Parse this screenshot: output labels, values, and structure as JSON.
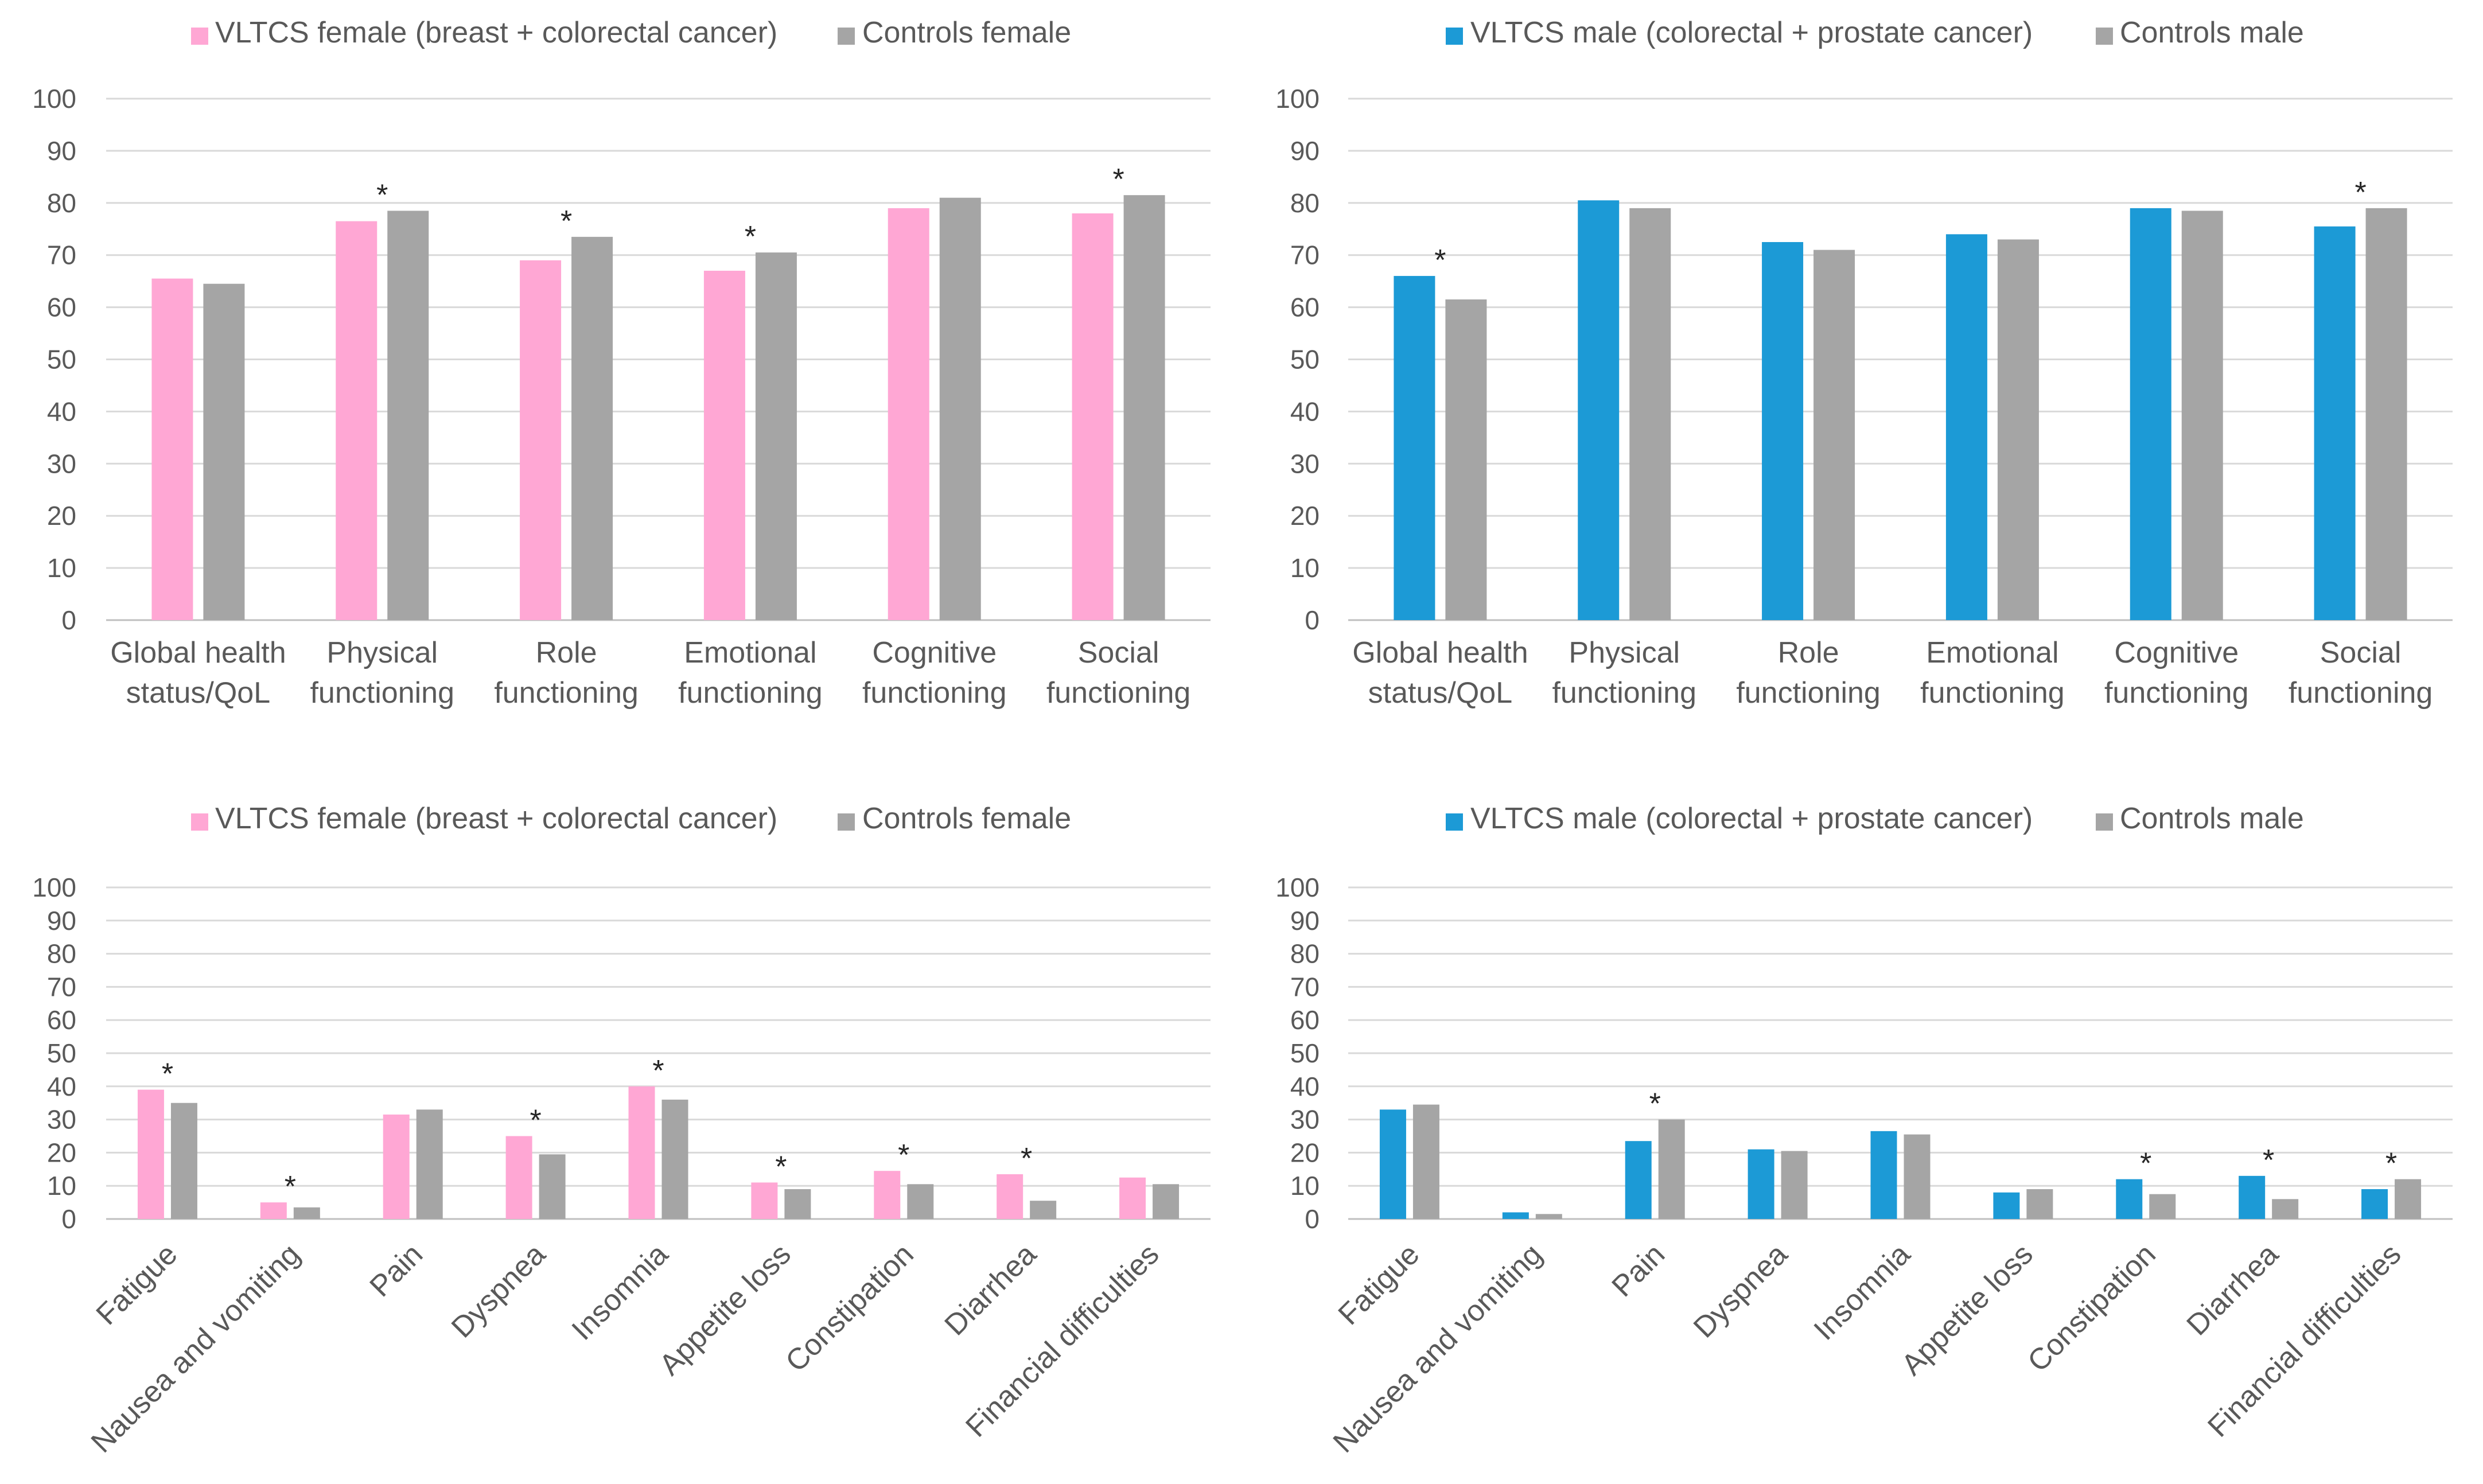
{
  "colors": {
    "female": "#FFA7D4",
    "male": "#1C9AD6",
    "control": "#A5A5A5",
    "grid": "#D9D9D9",
    "axis": "#BFBFBF",
    "text": "#595959"
  },
  "chart_data": [
    {
      "type": "bar",
      "title": "",
      "legend_position": "top",
      "categories": [
        [
          "Global health",
          "status/QoL"
        ],
        [
          "Physical",
          "functioning"
        ],
        [
          "Role",
          "functioning"
        ],
        [
          "Emotional",
          "functioning"
        ],
        [
          "Cognitive",
          "functioning"
        ],
        [
          "Social",
          "functioning"
        ]
      ],
      "series": [
        {
          "name": "VLTCS female (breast + colorectal cancer)",
          "color_key": "female",
          "values": [
            65.5,
            76.5,
            69,
            67,
            79,
            78
          ]
        },
        {
          "name": "Controls female",
          "color_key": "control",
          "values": [
            64.5,
            78.5,
            73.5,
            70.5,
            81,
            81.5
          ]
        }
      ],
      "significant": [
        false,
        true,
        true,
        true,
        false,
        true
      ],
      "ylim": [
        0,
        100
      ],
      "yticks": [
        0,
        10,
        20,
        30,
        40,
        50,
        60,
        70,
        80,
        90,
        100
      ],
      "label_rotation": 0,
      "xlabel": "",
      "ylabel": ""
    },
    {
      "type": "bar",
      "title": "",
      "legend_position": "top",
      "categories": [
        [
          "Global health",
          "status/QoL"
        ],
        [
          "Physical",
          "functioning"
        ],
        [
          "Role",
          "functioning"
        ],
        [
          "Emotional",
          "functioning"
        ],
        [
          "Cognitive",
          "functioning"
        ],
        [
          "Social",
          "functioning"
        ]
      ],
      "series": [
        {
          "name": "VLTCS male (colorectal + prostate cancer)",
          "color_key": "male",
          "values": [
            66,
            80.5,
            72.5,
            74,
            79,
            75.5
          ]
        },
        {
          "name": "Controls male",
          "color_key": "control",
          "values": [
            61.5,
            79,
            71,
            73,
            78.5,
            79
          ]
        }
      ],
      "significant": [
        true,
        false,
        false,
        false,
        false,
        true
      ],
      "ylim": [
        0,
        100
      ],
      "yticks": [
        0,
        10,
        20,
        30,
        40,
        50,
        60,
        70,
        80,
        90,
        100
      ],
      "label_rotation": -45,
      "xlabel": "",
      "ylabel": ""
    },
    {
      "type": "bar",
      "title": "",
      "legend_position": "top",
      "categories": [
        [
          "Fatigue"
        ],
        [
          "Nausea and vomiting"
        ],
        [
          "Pain"
        ],
        [
          "Dyspnea"
        ],
        [
          "Insomnia"
        ],
        [
          "Appetite loss"
        ],
        [
          "Constipation"
        ],
        [
          "Diarrhea"
        ],
        [
          "Financial difficulties"
        ]
      ],
      "series": [
        {
          "name": "VLTCS female (breast + colorectal cancer)",
          "color_key": "female",
          "values": [
            39,
            5,
            31.5,
            25,
            40,
            11,
            14.5,
            13.5,
            12.5
          ]
        },
        {
          "name": "Controls female",
          "color_key": "control",
          "values": [
            35,
            3.5,
            33,
            19.5,
            36,
            9,
            10.5,
            5.5,
            10.5
          ]
        }
      ],
      "significant": [
        true,
        true,
        false,
        true,
        true,
        true,
        true,
        true,
        false
      ],
      "ylim": [
        0,
        100
      ],
      "yticks": [
        0,
        10,
        20,
        30,
        40,
        50,
        60,
        70,
        80,
        90,
        100
      ],
      "label_rotation": -45,
      "xlabel": "",
      "ylabel": ""
    },
    {
      "type": "bar",
      "title": "",
      "legend_position": "top",
      "categories": [
        [
          "Fatigue"
        ],
        [
          "Nausea and vomiting"
        ],
        [
          "Pain"
        ],
        [
          "Dyspnea"
        ],
        [
          "Insomnia"
        ],
        [
          "Appetite loss"
        ],
        [
          "Constipation"
        ],
        [
          "Diarrhea"
        ],
        [
          "Financial difficulties"
        ]
      ],
      "series": [
        {
          "name": "VLTCS male (colorectal + prostate cancer)",
          "color_key": "male",
          "values": [
            33,
            2,
            23.5,
            21,
            26.5,
            8,
            12,
            13,
            9
          ]
        },
        {
          "name": "Controls male",
          "color_key": "control",
          "values": [
            34.5,
            1.5,
            30,
            20.5,
            25.5,
            9,
            7.5,
            6,
            12
          ]
        }
      ],
      "significant": [
        false,
        false,
        true,
        false,
        false,
        false,
        true,
        true,
        true
      ],
      "ylim": [
        0,
        100
      ],
      "yticks": [
        0,
        10,
        20,
        30,
        40,
        50,
        60,
        70,
        80,
        90,
        100
      ],
      "label_rotation": -45,
      "xlabel": "",
      "ylabel": ""
    }
  ]
}
